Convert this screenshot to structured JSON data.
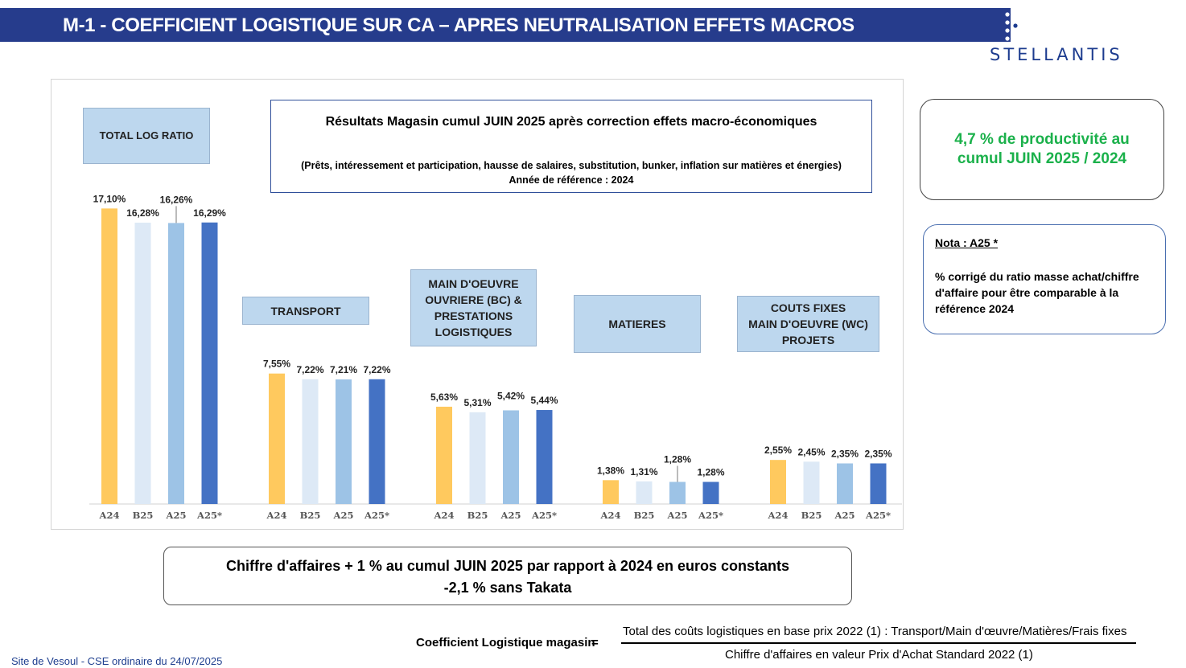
{
  "header": {
    "title": "M-1 - COEFFICIENT LOGISTIQUE SUR CA – APRES NEUTRALISATION EFFETS MACROS",
    "brand": "STELLANTIS",
    "brand_color": "#263c8c"
  },
  "chart_data": {
    "type": "bar",
    "unit": "%",
    "categories": [
      "A24",
      "B25",
      "A25",
      "A25*"
    ],
    "colors": [
      "#ffc95e",
      "#dde9f6",
      "#9dc3e6",
      "#4472c4"
    ],
    "groups": [
      {
        "label": "TOTAL LOG RATIO",
        "values": [
          17.1,
          16.28,
          16.26,
          16.29
        ],
        "value_labels": [
          "17,10%",
          "16,28%",
          "16,26%",
          "16,29%"
        ]
      },
      {
        "label": "TRANSPORT",
        "values": [
          7.55,
          7.22,
          7.21,
          7.22
        ],
        "value_labels": [
          "7,55%",
          "7,22%",
          "7,21%",
          "7,22%"
        ]
      },
      {
        "label": "MAIN D'OEUVRE OUVRIERE (BC) & PRESTATIONS LOGISTIQUES",
        "label_lines": [
          "MAIN D'OEUVRE",
          "OUVRIERE  (BC) &",
          "PRESTATIONS",
          "LOGISTIQUES"
        ],
        "values": [
          5.63,
          5.31,
          5.42,
          5.44
        ],
        "value_labels": [
          "5,63%",
          "5,31%",
          "5,42%",
          "5,44%"
        ]
      },
      {
        "label": "MATIERES",
        "values": [
          1.38,
          1.31,
          1.28,
          1.28
        ],
        "value_labels": [
          "1,38%",
          "1,31%",
          "1,28%",
          "1,28%"
        ]
      },
      {
        "label": "COUTS FIXES MAIN D'OEUVRE (WC) PROJETS",
        "label_lines": [
          "COUTS FIXES",
          "MAIN D'OEUVRE (WC)",
          "PROJETS"
        ],
        "values": [
          2.55,
          2.45,
          2.35,
          2.35
        ],
        "value_labels": [
          "2,55%",
          "2,45%",
          "2,35%",
          "2,35%"
        ]
      }
    ],
    "ylim": [
      0,
      18
    ],
    "grid": false,
    "legend": "none"
  },
  "info_box": {
    "title": "Résultats Magasin cumul JUIN 2025 après correction effets macro-économiques",
    "subtitle": "(Prêts, intéressement et participation, hausse de salaires, substitution, bunker, inflation sur matières et énergies)",
    "reference": "Année de référence : 2024"
  },
  "productivity": {
    "line1": "4,7 % de productivité au",
    "line2": "cumul JUIN 2025 / 2024",
    "color": "#1bb14b"
  },
  "nota": {
    "title": "Nota : A25 *",
    "text": "% corrigé du ratio masse achat/chiffre d'affaire pour être comparable à la référence 2024"
  },
  "revenue": {
    "line1": "Chiffre d'affaires + 1 % au cumul JUIN 2025 par rapport à 2024  en euros constants",
    "line2": "-2,1 % sans Takata"
  },
  "formula": {
    "label": "Coefficient Logistique magasin",
    "equals": "=",
    "numerator": "Total des coûts logistiques en base prix 2022 (1) : Transport/Main d'œuvre/Matières/Frais fixes",
    "denominator": "Chiffre d'affaires en valeur Prix d'Achat Standard 2022 (1)"
  },
  "footer": {
    "text": "Site de Vesoul - CSE ordinaire du 24/07/2025"
  }
}
